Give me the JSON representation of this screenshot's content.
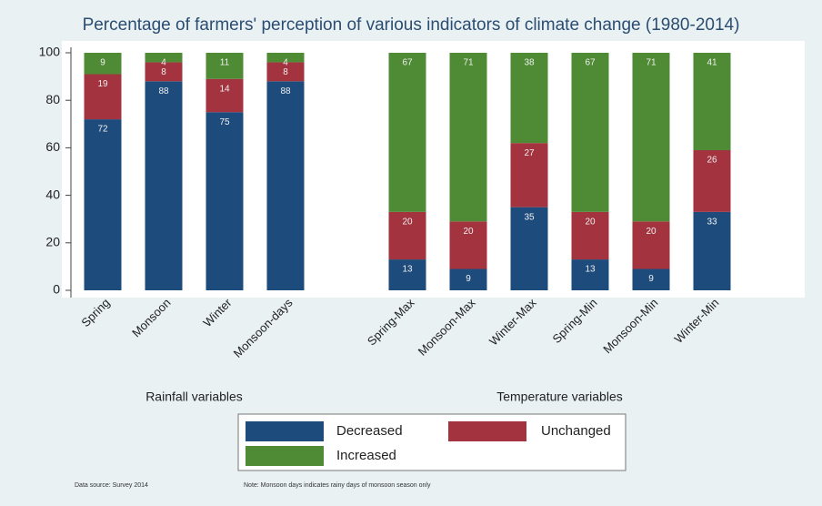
{
  "chart_data": {
    "type": "stacked_bar",
    "title": "Percentage of farmers' perception of various indicators of climate change (1980-2014)",
    "categories": [
      "Spring",
      "Monsoon",
      "Winter",
      "Monsoon-days",
      null,
      "Spring-Max",
      "Monsoon-Max",
      "Winter-Max",
      "Spring-Min",
      "Monsoon-Min",
      "Winter-Min"
    ],
    "group_labels": [
      "Rainfall variables",
      "Temperature variables"
    ],
    "series": [
      {
        "name": "Decreased",
        "color": "#1d4b7c",
        "values": [
          72,
          88,
          75,
          88,
          null,
          13,
          9,
          35,
          13,
          9,
          33
        ]
      },
      {
        "name": "Unchanged",
        "color": "#a3333f",
        "values": [
          19,
          8,
          14,
          8,
          null,
          20,
          20,
          27,
          20,
          20,
          26
        ]
      },
      {
        "name": "Increased",
        "color": "#4f8b34",
        "values": [
          9,
          4,
          11,
          4,
          null,
          67,
          71,
          38,
          67,
          71,
          41
        ]
      }
    ],
    "ylim": [
      0,
      100
    ],
    "yticks": [
      0,
      20,
      40,
      60,
      80,
      100
    ],
    "grid": false,
    "legend": "bottom",
    "source": "Data source: Survey 2014",
    "note": "Note: Monsoon days indicates rainy days of monsoon season only"
  }
}
